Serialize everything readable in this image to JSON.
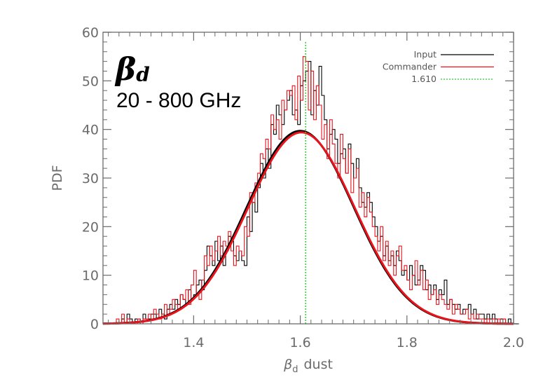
{
  "chart_data": {
    "type": "line",
    "title": "",
    "xlabel": "dust",
    "xlabel_symbol": "β",
    "xlabel_subscript": "d",
    "ylabel": "PDF",
    "xlim": [
      1.23,
      2.0
    ],
    "ylim": [
      0,
      60
    ],
    "x_ticks": [
      1.4,
      1.6,
      1.8,
      2.0
    ],
    "x_tick_labels": [
      "1.4",
      "1.6",
      "1.8",
      "2.0"
    ],
    "y_ticks": [
      0,
      10,
      20,
      30,
      40,
      50,
      60
    ],
    "y_tick_labels": [
      "0",
      "10",
      "20",
      "30",
      "40",
      "50",
      "60"
    ],
    "grid": false,
    "legend_position": "top-right",
    "annotation": {
      "symbol": "β",
      "subscript": "d",
      "band": "20 - 800 GHz"
    },
    "histogram_bin_width": 0.005,
    "histogram_start": 1.23,
    "series": [
      {
        "name": "Input",
        "color": "#000000",
        "kind": "histogram",
        "values": [
          0,
          0,
          0,
          0,
          0,
          0,
          0,
          1,
          0,
          2,
          1,
          0,
          1,
          1,
          0,
          2,
          1,
          1,
          2,
          2,
          1,
          3,
          2,
          1,
          3,
          4,
          3,
          5,
          4,
          6,
          5,
          4,
          7,
          5,
          6,
          8,
          9,
          7,
          11,
          16,
          14,
          12,
          17,
          13,
          16,
          12,
          15,
          18,
          17,
          14,
          13,
          15,
          13,
          12,
          22,
          19,
          25,
          23,
          28,
          33,
          30,
          36,
          32,
          41,
          39,
          45,
          43,
          41,
          44,
          46,
          48,
          43,
          44,
          41,
          49,
          50,
          52,
          54,
          43,
          48,
          45,
          53,
          47,
          42,
          36,
          39,
          40,
          38,
          33,
          35,
          36,
          31,
          37,
          33,
          30,
          34,
          28,
          25,
          24,
          27,
          25,
          22,
          20,
          17,
          18,
          14,
          16,
          13,
          14,
          12,
          15,
          13,
          10,
          11,
          9,
          12,
          10,
          8,
          9,
          12,
          11,
          7,
          8,
          6,
          8,
          5,
          7,
          6,
          9,
          4,
          5,
          4,
          3,
          4,
          2,
          3,
          3,
          4,
          2,
          3,
          1,
          2,
          2,
          1,
          2,
          1,
          2,
          1,
          0,
          1,
          1,
          0,
          1,
          0,
          0,
          0
        ]
      },
      {
        "name": "Commander",
        "color": "#e8131b",
        "kind": "histogram",
        "values": [
          0,
          0,
          0,
          0,
          0,
          1,
          0,
          2,
          0,
          1,
          0,
          0,
          0,
          1,
          0,
          1,
          1,
          2,
          1,
          3,
          2,
          1,
          2,
          4,
          2,
          3,
          5,
          4,
          3,
          6,
          5,
          7,
          4,
          8,
          11,
          6,
          5,
          9,
          14,
          12,
          16,
          13,
          15,
          18,
          14,
          17,
          16,
          19,
          15,
          12,
          16,
          15,
          14,
          20,
          18,
          27,
          25,
          29,
          31,
          35,
          34,
          38,
          36,
          43,
          40,
          42,
          38,
          46,
          44,
          48,
          47,
          49,
          42,
          51,
          46,
          55,
          54,
          44,
          52,
          42,
          49,
          45,
          38,
          41,
          34,
          42,
          37,
          33,
          30,
          39,
          34,
          31,
          36,
          27,
          30,
          32,
          24,
          27,
          22,
          26,
          23,
          20,
          18,
          15,
          20,
          13,
          17,
          12,
          15,
          10,
          14,
          16,
          11,
          12,
          9,
          7,
          10,
          13,
          8,
          11,
          7,
          9,
          5,
          6,
          7,
          4,
          6,
          5,
          4,
          3,
          5,
          2,
          4,
          3,
          2,
          2,
          3,
          1,
          2,
          1,
          2,
          1,
          1,
          0,
          1,
          0,
          1,
          0,
          1,
          0,
          1,
          0,
          0,
          0
        ]
      },
      {
        "name": "1.610",
        "color": "#2ecc2e",
        "kind": "vline",
        "x": 1.61
      }
    ],
    "fit_curves": [
      {
        "color": "#000000",
        "mean": 1.6,
        "sigma": 0.1,
        "peak": 39.7
      },
      {
        "color": "#e8131b",
        "mean": 1.602,
        "sigma": 0.1,
        "peak": 39.4
      }
    ]
  }
}
